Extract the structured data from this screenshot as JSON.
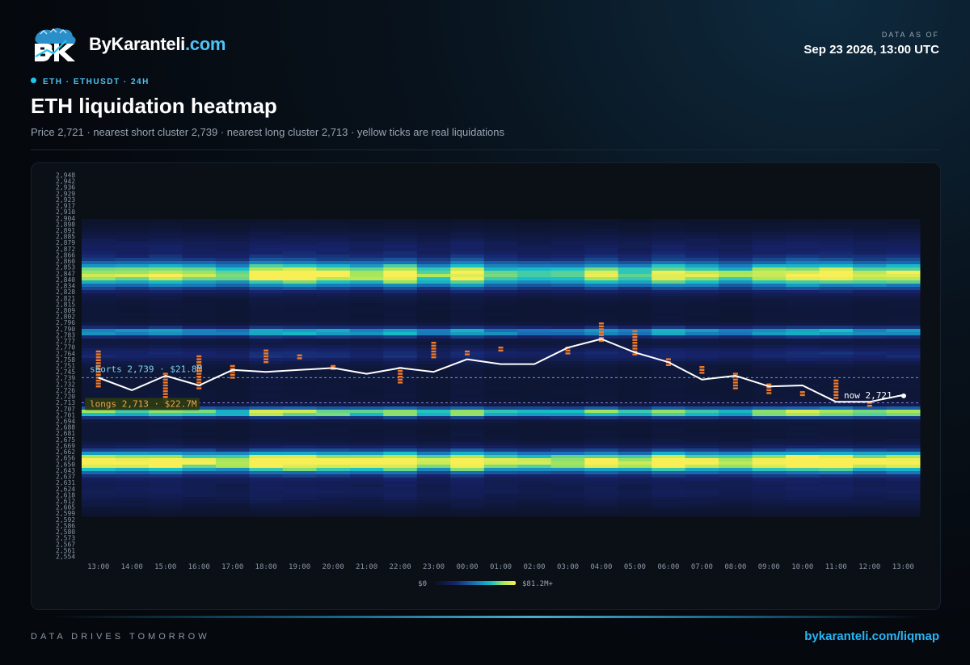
{
  "header": {
    "brand_name": "ByKaranteli",
    "brand_tld": ".com",
    "asof_label": "DATA AS OF",
    "asof_value": "Sep 23 2026, 13:00 UTC",
    "tagline": "ETH · ETHUSDT · 24H",
    "title": "ETH liquidation heatmap",
    "subtitle": "Price 2,721 · nearest short cluster 2,739 · nearest long cluster 2,713 · yellow ticks are real liquidations"
  },
  "footer": {
    "motto": "DATA DRIVES TOMORROW",
    "url": "bykaranteli.com/liqmap"
  },
  "colors": {
    "accent": "#29b6f6",
    "price_line": "#ffffff",
    "short_line": "#4fc3f7",
    "long_line": "#9a8cf0",
    "liq_tick": "#f07a2a",
    "heat_low": "#0d1a4a",
    "heat_mid": "#1aa3c8",
    "heat_high": "#f5f05a"
  },
  "chart_data": {
    "type": "heatmap",
    "title": "ETH liquidation heatmap",
    "x_categories": [
      "13:00",
      "14:00",
      "15:00",
      "16:00",
      "17:00",
      "18:00",
      "19:00",
      "20:00",
      "21:00",
      "22:00",
      "23:00",
      "00:00",
      "01:00",
      "02:00",
      "03:00",
      "04:00",
      "05:00",
      "06:00",
      "07:00",
      "08:00",
      "09:00",
      "10:00",
      "11:00",
      "12:00",
      "13:00"
    ],
    "y_ticks": [
      "2,948",
      "2,942",
      "2,936",
      "2,929",
      "2,923",
      "2,917",
      "2,910",
      "2,904",
      "2,898",
      "2,891",
      "2,885",
      "2,879",
      "2,872",
      "2,866",
      "2,860",
      "2,853",
      "2,847",
      "2,840",
      "2,834",
      "2,828",
      "2,821",
      "2,815",
      "2,809",
      "2,802",
      "2,796",
      "2,790",
      "2,783",
      "2,777",
      "2,770",
      "2,764",
      "2,758",
      "2,751",
      "2,745",
      "2,739",
      "2,732",
      "2,726",
      "2,720",
      "2,713",
      "2,707",
      "2,701",
      "2,694",
      "2,688",
      "2,681",
      "2,675",
      "2,669",
      "2,662",
      "2,656",
      "2,650",
      "2,643",
      "2,637",
      "2,631",
      "2,624",
      "2,618",
      "2,612",
      "2,605",
      "2,599",
      "2,592",
      "2,586",
      "2,580",
      "2,573",
      "2,567",
      "2,561",
      "2,554"
    ],
    "ylim": [
      2554,
      2948
    ],
    "price_series": [
      2739,
      2726,
      2741,
      2731,
      2747,
      2745,
      2747,
      2749,
      2743,
      2749,
      2745,
      2758,
      2753,
      2753,
      2770,
      2779,
      2765,
      2755,
      2737,
      2741,
      2730,
      2731,
      2714,
      2714,
      2721
    ],
    "current_price": 2721,
    "current_price_label": "now 2,721",
    "short_cluster": {
      "price": 2739,
      "label": "shorts 2,739 · $21.8M"
    },
    "long_cluster": {
      "price": 2713,
      "label": "longs 2,713 · $22.7M"
    },
    "bands": [
      {
        "center": 2845,
        "width": 13,
        "intensity": 0.82
      },
      {
        "center": 2786,
        "width": 5,
        "intensity": 0.55
      },
      {
        "center": 2703,
        "width": 5,
        "intensity": 0.75
      },
      {
        "center": 2652,
        "width": 11,
        "intensity": 0.95
      },
      {
        "center": 2763,
        "width": 8,
        "intensity": 0.18
      },
      {
        "center": 2872,
        "width": 20,
        "intensity": 0.12
      },
      {
        "center": 2620,
        "width": 20,
        "intensity": 0.1
      }
    ],
    "liquidations": [
      {
        "x": "13:00",
        "low": 2730,
        "high": 2767
      },
      {
        "x": "15:00",
        "low": 2713,
        "high": 2745
      },
      {
        "x": "16:00",
        "low": 2728,
        "high": 2763
      },
      {
        "x": "17:00",
        "low": 2739,
        "high": 2752
      },
      {
        "x": "18:00",
        "low": 2755,
        "high": 2767
      },
      {
        "x": "19:00",
        "low": 2759,
        "high": 2764
      },
      {
        "x": "20:00",
        "low": 2748,
        "high": 2752
      },
      {
        "x": "22:00",
        "low": 2734,
        "high": 2750
      },
      {
        "x": "23:00",
        "low": 2760,
        "high": 2776
      },
      {
        "x": "00:00",
        "low": 2763,
        "high": 2767
      },
      {
        "x": "01:00",
        "low": 2767,
        "high": 2770
      },
      {
        "x": "03:00",
        "low": 2764,
        "high": 2770
      },
      {
        "x": "04:00",
        "low": 2777,
        "high": 2795
      },
      {
        "x": "05:00",
        "low": 2763,
        "high": 2789
      },
      {
        "x": "06:00",
        "low": 2752,
        "high": 2758
      },
      {
        "x": "07:00",
        "low": 2744,
        "high": 2750
      },
      {
        "x": "08:00",
        "low": 2728,
        "high": 2745
      },
      {
        "x": "09:00",
        "low": 2723,
        "high": 2732
      },
      {
        "x": "10:00",
        "low": 2721,
        "high": 2725
      },
      {
        "x": "11:00",
        "low": 2718,
        "high": 2736
      },
      {
        "x": "12:00",
        "low": 2710,
        "high": 2714
      }
    ],
    "colorbar": {
      "min_label": "$0",
      "max_label": "$81.2M+"
    }
  }
}
